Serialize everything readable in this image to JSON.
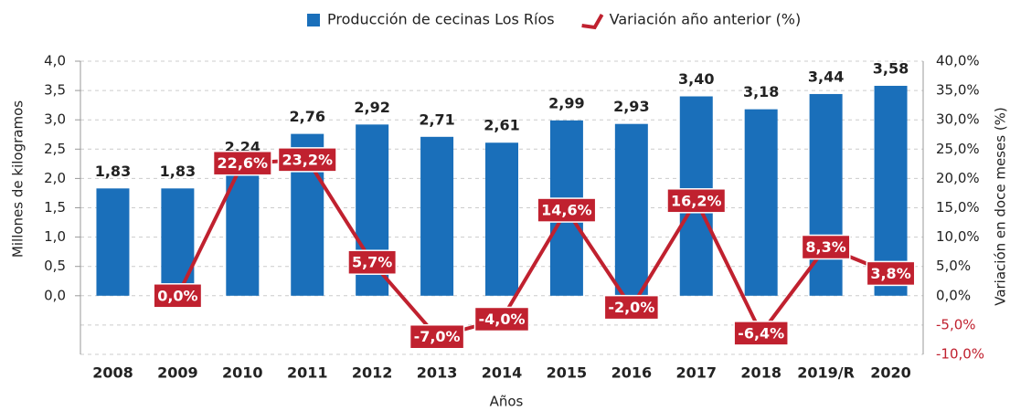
{
  "chart_data": {
    "type": "bar",
    "categories": [
      "2008",
      "2009",
      "2010",
      "2011",
      "2012",
      "2013",
      "2014",
      "2015",
      "2016",
      "2017",
      "2018",
      "2019/R",
      "2020"
    ],
    "series": [
      {
        "name": "Producción de cecinas Los Ríos",
        "type": "bar",
        "color": "#1a6fba",
        "values": [
          1.83,
          1.83,
          2.24,
          2.76,
          2.92,
          2.71,
          2.61,
          2.99,
          2.93,
          3.4,
          3.18,
          3.44,
          3.58
        ],
        "value_labels": [
          "1,83",
          "1,83",
          "2,24",
          "2,76",
          "2,92",
          "2,71",
          "2,61",
          "2,99",
          "2,93",
          "3,40",
          "3,18",
          "3,44",
          "3,58"
        ]
      },
      {
        "name": "Variación año anterior (%)",
        "type": "line",
        "axis": "y2",
        "color": "#c0212f",
        "values": [
          null,
          0.0,
          22.6,
          23.2,
          5.7,
          -7.0,
          -4.0,
          14.6,
          -2.0,
          16.2,
          -6.4,
          8.3,
          3.8
        ],
        "value_labels": [
          null,
          "0,0%",
          "22,6%",
          "23,2%",
          "5,7%",
          "-7,0%",
          "-4,0%",
          "14,6%",
          "-2,0%",
          "16,2%",
          "-6,4%",
          "8,3%",
          "3,8%"
        ]
      }
    ],
    "xlabel": "Años",
    "ylabel": "Millones de kilogramos",
    "y2label": "Variación en doce meses (%)",
    "ylim": [
      -1.0,
      4.0
    ],
    "yticks": [
      {
        "value": 0,
        "label": "0,0"
      },
      {
        "value": 0.5,
        "label": "0,5"
      },
      {
        "value": 1,
        "label": "1,0"
      },
      {
        "value": 1.5,
        "label": "1,5"
      },
      {
        "value": 2,
        "label": "2,0"
      },
      {
        "value": 2.5,
        "label": "2,5"
      },
      {
        "value": 3,
        "label": "3,0"
      },
      {
        "value": 3.5,
        "label": "3,5"
      },
      {
        "value": 4,
        "label": "4,0"
      }
    ],
    "y2lim": [
      -10,
      40
    ],
    "y2ticks": [
      {
        "value": -10,
        "label": "-10,0%"
      },
      {
        "value": -5,
        "label": "-5,0%"
      },
      {
        "value": 0,
        "label": "0,0%"
      },
      {
        "value": 5,
        "label": "5,0%"
      },
      {
        "value": 10,
        "label": "10,0%"
      },
      {
        "value": 15,
        "label": "15,0%"
      },
      {
        "value": 20,
        "label": "20,0%"
      },
      {
        "value": 25,
        "label": "25,0%"
      },
      {
        "value": 30,
        "label": "30,0%"
      },
      {
        "value": 35,
        "label": "35,0%"
      },
      {
        "value": 40,
        "label": "40,0%"
      }
    ],
    "grid": true,
    "legend": "top"
  }
}
